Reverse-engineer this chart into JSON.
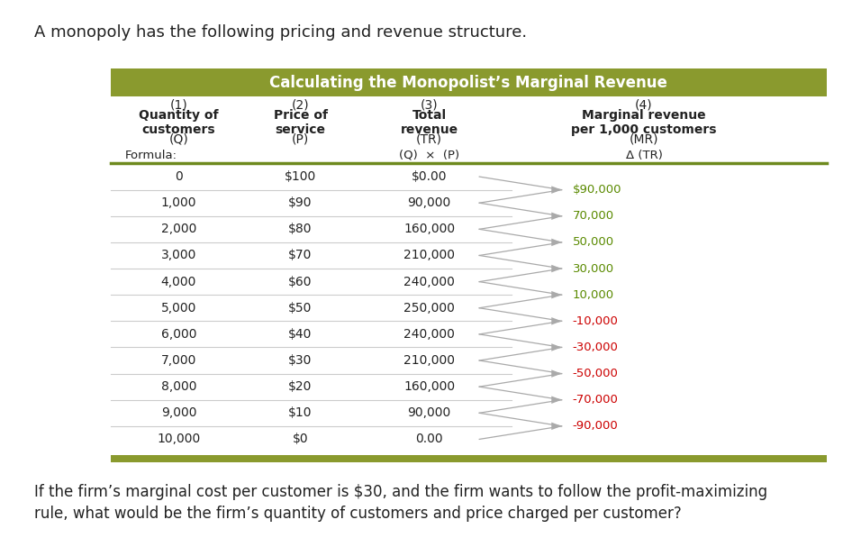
{
  "title_text": "A monopoly has the following pricing and revenue structure.",
  "table_title": "Calculating the Monopolist’s Marginal Revenue",
  "table_title_bg": "#8a9a2e",
  "table_title_color": "#ffffff",
  "quantities": [
    0,
    1000,
    2000,
    3000,
    4000,
    5000,
    6000,
    7000,
    8000,
    9000,
    10000
  ],
  "prices": [
    "$100",
    "$90",
    "$80",
    "$70",
    "$60",
    "$50",
    "$40",
    "$30",
    "$20",
    "$10",
    "$0"
  ],
  "total_revenues": [
    "$0.00",
    "90,000",
    "160,000",
    "210,000",
    "240,000",
    "250,000",
    "240,000",
    "210,000",
    "160,000",
    "90,000",
    "0.00"
  ],
  "marginal_revenues": [
    "$90,000",
    "70,000",
    "50,000",
    "30,000",
    "10,000",
    "-10,000",
    "-30,000",
    "-50,000",
    "-70,000",
    "-90,000"
  ],
  "mr_colors_hex": [
    "#5a8a00",
    "#5a8a00",
    "#5a8a00",
    "#5a8a00",
    "#5a8a00",
    "#cc0000",
    "#cc0000",
    "#cc0000",
    "#cc0000",
    "#cc0000"
  ],
  "bottom_text_line1": "If the firm’s marginal cost per customer is $30, and the firm wants to follow the profit-maximizing",
  "bottom_text_line2": "rule, what would be the firm’s quantity of customers and price charged per customer?",
  "table_title_bg_color": "#8a9a2e",
  "row_line_color": "#cccccc",
  "bg_color": "#ffffff",
  "header_divider_color": "#6e8a1e",
  "arrow_color": "#aaaaaa",
  "text_color": "#222222"
}
